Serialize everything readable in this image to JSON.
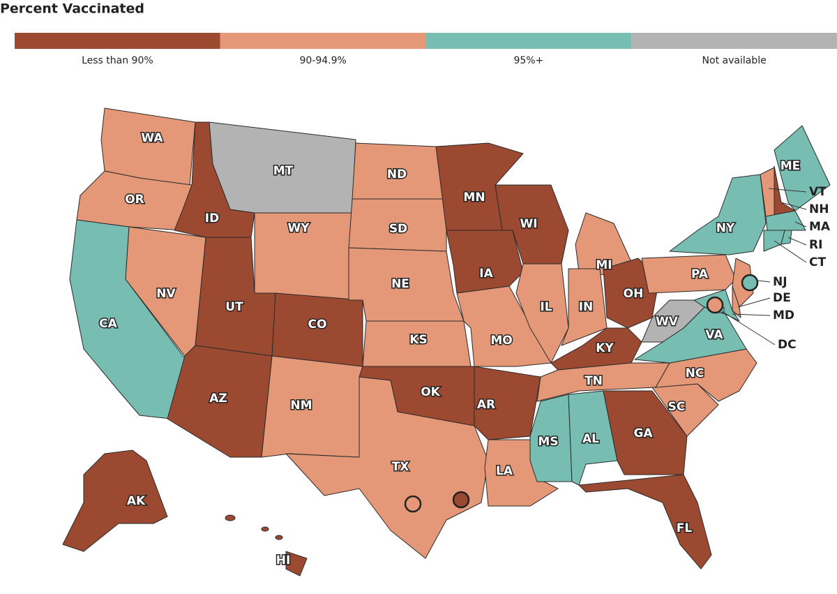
{
  "title": "Percent Vaccinated",
  "legend": [
    {
      "label": "Less than 90%",
      "color": "#9b4930"
    },
    {
      "label": "90-94.9%",
      "color": "#e49877"
    },
    {
      "label": "95%+",
      "color": "#78bdb2"
    },
    {
      "label": "Not available",
      "color": "#b3b3b3"
    }
  ],
  "states": [
    {
      "abbr": "WA",
      "group": "90-94.9%"
    },
    {
      "abbr": "OR",
      "group": "90-94.9%"
    },
    {
      "abbr": "CA",
      "group": "95%+"
    },
    {
      "abbr": "NV",
      "group": "90-94.9%"
    },
    {
      "abbr": "ID",
      "group": "Less than 90%"
    },
    {
      "abbr": "MT",
      "group": "Not available"
    },
    {
      "abbr": "WY",
      "group": "90-94.9%"
    },
    {
      "abbr": "UT",
      "group": "Less than 90%"
    },
    {
      "abbr": "AZ",
      "group": "Less than 90%"
    },
    {
      "abbr": "CO",
      "group": "Less than 90%"
    },
    {
      "abbr": "NM",
      "group": "90-94.9%"
    },
    {
      "abbr": "ND",
      "group": "90-94.9%"
    },
    {
      "abbr": "SD",
      "group": "90-94.9%"
    },
    {
      "abbr": "NE",
      "group": "90-94.9%"
    },
    {
      "abbr": "KS",
      "group": "90-94.9%"
    },
    {
      "abbr": "OK",
      "group": "Less than 90%"
    },
    {
      "abbr": "TX",
      "group": "90-94.9%"
    },
    {
      "abbr": "MN",
      "group": "Less than 90%"
    },
    {
      "abbr": "IA",
      "group": "Less than 90%"
    },
    {
      "abbr": "MO",
      "group": "90-94.9%"
    },
    {
      "abbr": "AR",
      "group": "Less than 90%"
    },
    {
      "abbr": "LA",
      "group": "90-94.9%"
    },
    {
      "abbr": "WI",
      "group": "Less than 90%"
    },
    {
      "abbr": "IL",
      "group": "90-94.9%"
    },
    {
      "abbr": "MI",
      "group": "90-94.9%"
    },
    {
      "abbr": "IN",
      "group": "90-94.9%"
    },
    {
      "abbr": "OH",
      "group": "Less than 90%"
    },
    {
      "abbr": "KY",
      "group": "Less than 90%"
    },
    {
      "abbr": "TN",
      "group": "90-94.9%"
    },
    {
      "abbr": "MS",
      "group": "95%+"
    },
    {
      "abbr": "AL",
      "group": "95%+"
    },
    {
      "abbr": "GA",
      "group": "Less than 90%"
    },
    {
      "abbr": "FL",
      "group": "Less than 90%"
    },
    {
      "abbr": "SC",
      "group": "90-94.9%"
    },
    {
      "abbr": "NC",
      "group": "90-94.9%"
    },
    {
      "abbr": "VA",
      "group": "95%+"
    },
    {
      "abbr": "WV",
      "group": "Not available"
    },
    {
      "abbr": "PA",
      "group": "90-94.9%"
    },
    {
      "abbr": "NY",
      "group": "95%+"
    },
    {
      "abbr": "ME",
      "group": "95%+"
    },
    {
      "abbr": "NH",
      "group": "Less than 90%"
    },
    {
      "abbr": "VT",
      "group": "90-94.9%"
    },
    {
      "abbr": "MA",
      "group": "95%+"
    },
    {
      "abbr": "CT",
      "group": "95%+"
    },
    {
      "abbr": "RI",
      "group": "95%+"
    },
    {
      "abbr": "NJ",
      "group": "90-94.9%"
    },
    {
      "abbr": "DE",
      "group": "90-94.9%"
    },
    {
      "abbr": "MD",
      "group": "95%+"
    },
    {
      "abbr": "DC",
      "group": "95%+"
    },
    {
      "abbr": "AK",
      "group": "Less than 90%"
    },
    {
      "abbr": "HI",
      "group": "Less than 90%"
    }
  ],
  "cities": [
    {
      "group": "95%+"
    },
    {
      "group": "90-94.9%"
    },
    {
      "group": "90-94.9%"
    },
    {
      "group": "Less than 90%"
    }
  ]
}
